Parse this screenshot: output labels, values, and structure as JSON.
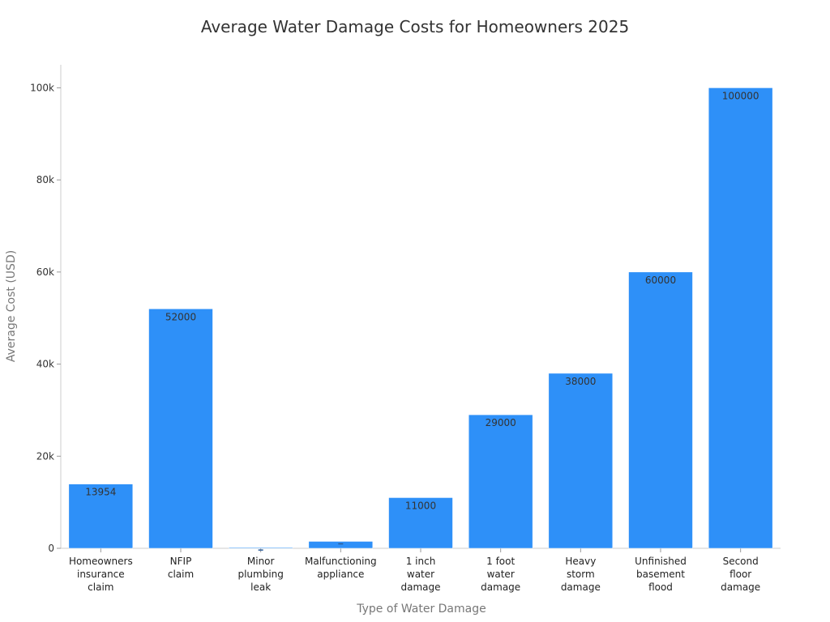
{
  "chart_data": {
    "type": "bar",
    "title": "Average Water Damage Costs for Homeowners 2025",
    "xlabel": "Type of Water Damage",
    "ylabel": "Average Cost (USD)",
    "ylim": [
      0,
      105000
    ],
    "yticks": [
      0,
      20000,
      40000,
      60000,
      80000,
      100000
    ],
    "ytick_labels": [
      "0",
      "20k",
      "40k",
      "60k",
      "80k",
      "100k"
    ],
    "categories": [
      [
        "Homeowners",
        "insurance",
        "claim"
      ],
      [
        "NFIP",
        "claim"
      ],
      [
        "Minor",
        "plumbing",
        "leak"
      ],
      [
        "Malfunctioning",
        "appliance"
      ],
      [
        "1 inch",
        "water",
        "damage"
      ],
      [
        "1 foot",
        "water",
        "damage"
      ],
      [
        "Heavy",
        "storm",
        "damage"
      ],
      [
        "Unfinished",
        "basement",
        "flood"
      ],
      [
        "Second",
        "floor",
        "damage"
      ]
    ],
    "values": [
      13954,
      52000,
      150,
      1500,
      11000,
      29000,
      38000,
      60000,
      100000
    ],
    "data_labels": [
      "13954",
      "52000",
      "",
      "",
      "11000",
      "29000",
      "38000",
      "60000",
      "100000"
    ],
    "bar_color": "#2e90f8",
    "grid": false
  }
}
